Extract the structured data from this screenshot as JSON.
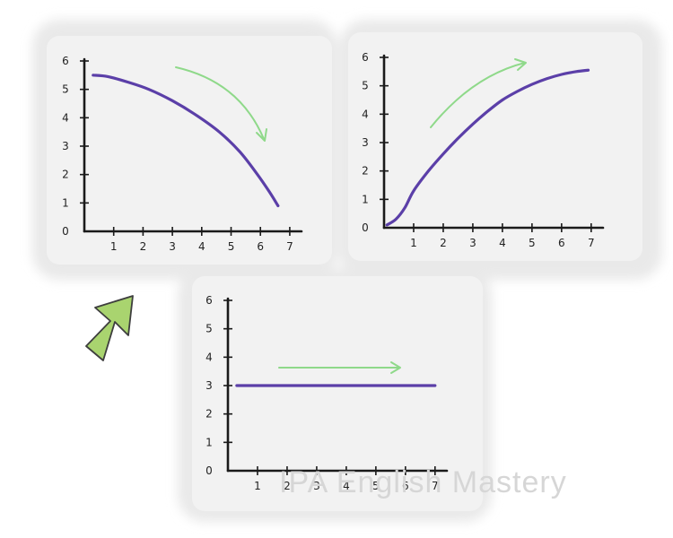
{
  "colors": {
    "line": "#5b3fa8",
    "trend_arrow": "#8fd98a",
    "big_arrow_fill": "#a9d46f",
    "panel_bg": "#f2f2f2",
    "axis": "#1a1a1a"
  },
  "watermark": "IPA English Mastery",
  "chart_data": [
    {
      "type": "line",
      "xticks": [
        "1",
        "2",
        "3",
        "4",
        "5",
        "6",
        "7"
      ],
      "yticks": [
        "0",
        "1",
        "2",
        "3",
        "4",
        "5",
        "6"
      ],
      "xlim": [
        0,
        7.4
      ],
      "ylim": [
        0,
        6
      ],
      "series": [
        {
          "x": [
            0.3,
            0.8,
            1.5,
            2.2,
            3.0,
            3.8,
            4.6,
            5.3,
            5.9,
            6.3,
            6.6
          ],
          "y": [
            5.5,
            5.45,
            5.25,
            5.0,
            4.6,
            4.1,
            3.5,
            2.8,
            2.0,
            1.4,
            0.9
          ]
        }
      ],
      "trend_arrow": "down-right",
      "grid": false
    },
    {
      "type": "line",
      "xticks": [
        "1",
        "2",
        "3",
        "4",
        "5",
        "6",
        "7"
      ],
      "yticks": [
        "0",
        "1",
        "2",
        "3",
        "4",
        "5",
        "6"
      ],
      "xlim": [
        0,
        7.4
      ],
      "ylim": [
        0,
        6
      ],
      "series": [
        {
          "x": [
            0.1,
            0.4,
            0.7,
            1.0,
            1.5,
            2.0,
            2.5,
            3.0,
            3.5,
            4.0,
            4.5,
            5.0,
            5.5,
            6.0,
            6.5,
            6.9
          ],
          "y": [
            0.1,
            0.3,
            0.7,
            1.3,
            2.0,
            2.6,
            3.15,
            3.65,
            4.1,
            4.5,
            4.8,
            5.05,
            5.25,
            5.4,
            5.5,
            5.55
          ]
        }
      ],
      "trend_arrow": "up-right",
      "grid": false
    },
    {
      "type": "line",
      "xticks": [
        "1",
        "2",
        "3",
        "4",
        "5",
        "6",
        "7"
      ],
      "yticks": [
        "0",
        "1",
        "2",
        "3",
        "4",
        "5",
        "6"
      ],
      "xlim": [
        0,
        7.4
      ],
      "ylim": [
        0,
        6
      ],
      "series": [
        {
          "x": [
            0.3,
            7.0
          ],
          "y": [
            3.0,
            3.0
          ]
        }
      ],
      "trend_arrow": "right",
      "grid": false
    }
  ]
}
